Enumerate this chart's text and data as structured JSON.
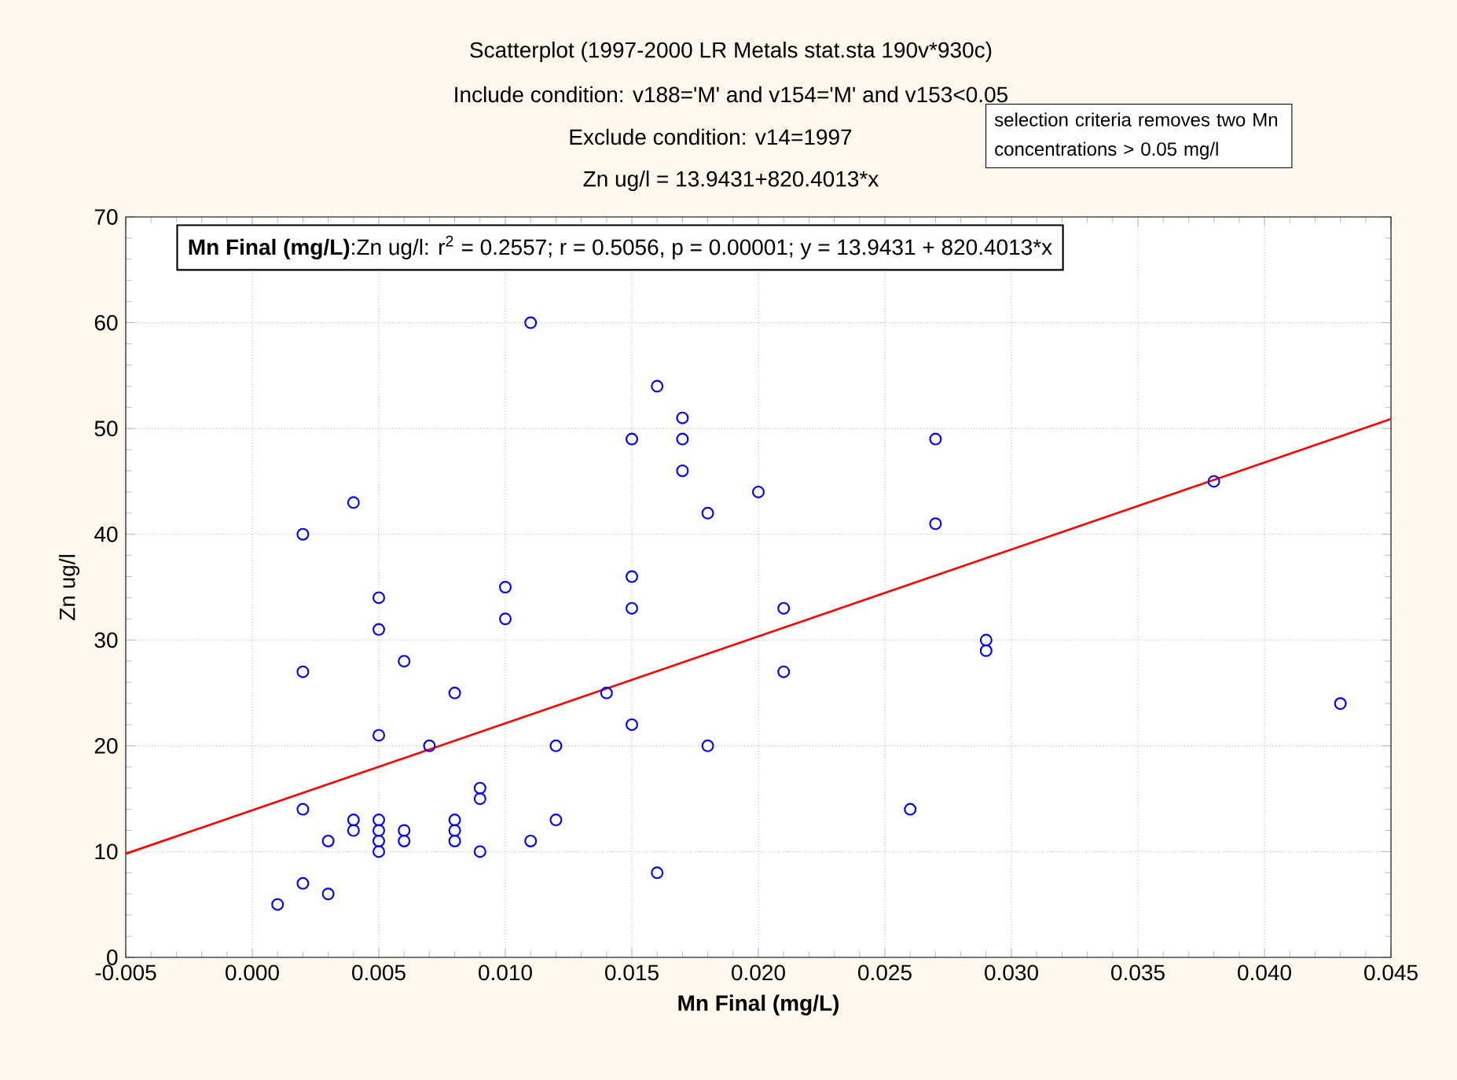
{
  "chart_data": {
    "type": "scatter",
    "title": "Scatterplot (1997-2000 LR Metals stat.sta 190v*930c)",
    "subtitle": "Include condition: v188='M' and v154='M' and v153<0.05",
    "xlabel": "Mn Final (mg/L)",
    "ylabel": "Zn ug/l",
    "annotations": [
      "Exclude condition: v14=1997",
      "Zn ug/l = 13.9431+820.4013*x",
      "selection criteria removes two Mn concentrations > 0.05 mg/l",
      "**Mn Final (mg/L)**:Zn ug/l:  r$^{2}$ = 0.2557;  r = 0.5056, p = 0.00001;  y = 13.9431 + 820.4013*x"
    ],
    "xlim": [
      -0.005,
      0.045
    ],
    "ylim": [
      0,
      70
    ],
    "xticks": [
      {
        "value": -0.005,
        "label": "-0.005"
      },
      {
        "value": 0.0,
        "label": "0.000"
      },
      {
        "value": 0.005,
        "label": "0.005"
      },
      {
        "value": 0.01,
        "label": "0.010"
      },
      {
        "value": 0.015,
        "label": "0.015"
      },
      {
        "value": 0.02,
        "label": "0.020"
      },
      {
        "value": 0.025,
        "label": "0.025"
      },
      {
        "value": 0.03,
        "label": "0.030"
      },
      {
        "value": 0.035,
        "label": "0.035"
      },
      {
        "value": 0.04,
        "label": "0.040"
      },
      {
        "value": 0.045,
        "label": "0.045"
      }
    ],
    "yticks": [
      0,
      10,
      20,
      30,
      40,
      50,
      60,
      70
    ],
    "grid": true,
    "series": [
      {
        "type": "scatter",
        "color": "#0000ff",
        "marker": "circle",
        "x": [
          0.001,
          0.002,
          0.002,
          0.002,
          0.002,
          0.003,
          0.003,
          0.004,
          0.004,
          0.004,
          0.005,
          0.005,
          0.005,
          0.005,
          0.005,
          0.005,
          0.005,
          0.006,
          0.006,
          0.006,
          0.007,
          0.008,
          0.008,
          0.008,
          0.008,
          0.009,
          0.009,
          0.009,
          0.01,
          0.01,
          0.011,
          0.011,
          0.012,
          0.012,
          0.014,
          0.015,
          0.015,
          0.015,
          0.015,
          0.016,
          0.016,
          0.017,
          0.017,
          0.017,
          0.018,
          0.018,
          0.02,
          0.021,
          0.021,
          0.026,
          0.027,
          0.027,
          0.029,
          0.029,
          0.038,
          0.043
        ],
        "values": [
          5,
          7,
          14,
          27,
          40,
          6,
          11,
          12,
          13,
          43,
          10,
          11,
          12,
          13,
          21,
          31,
          34,
          11,
          12,
          28,
          20,
          11,
          12,
          13,
          25,
          10,
          15,
          16,
          32,
          35,
          11,
          60,
          13,
          20,
          25,
          22,
          33,
          36,
          49,
          8,
          54,
          46,
          49,
          51,
          20,
          42,
          44,
          27,
          33,
          14,
          41,
          49,
          29,
          30,
          45,
          24
        ]
      },
      {
        "type": "line",
        "color": "#ff0000",
        "x": [
          -0.005,
          0.045
        ],
        "values": [
          9.8,
          50.9
        ]
      }
    ]
  }
}
